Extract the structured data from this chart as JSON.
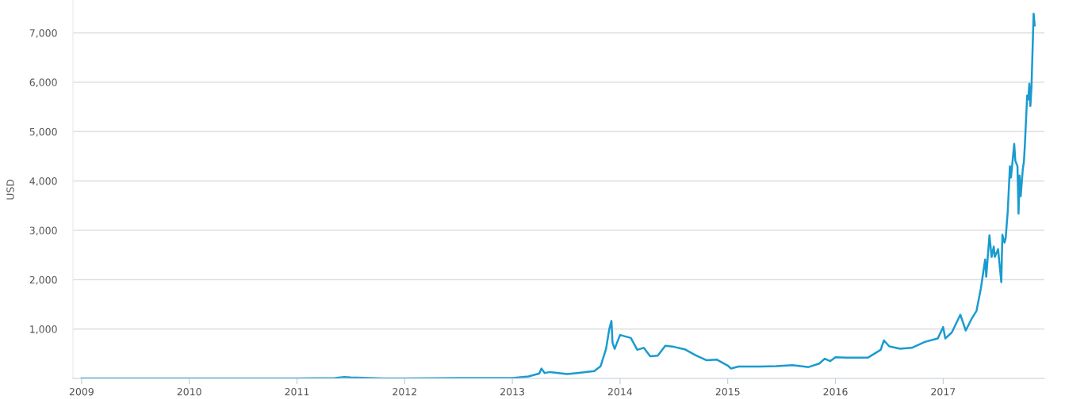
{
  "chart_data": {
    "type": "line",
    "ylabel": "USD",
    "xlim": [
      2008.92,
      2017.94
    ],
    "xticks": [
      2009,
      2010,
      2011,
      2012,
      2013,
      2014,
      2015,
      2016,
      2017
    ],
    "ylim": [
      0,
      7650
    ],
    "yticks": [
      {
        "value": 1000,
        "label": "1,000"
      },
      {
        "value": 2000,
        "label": "2,000"
      },
      {
        "value": 3000,
        "label": "3,000"
      },
      {
        "value": 4000,
        "label": "4,000"
      },
      {
        "value": 5000,
        "label": "5,000"
      },
      {
        "value": 6000,
        "label": "6,000"
      },
      {
        "value": 7000,
        "label": "7,000"
      }
    ],
    "grid": "y",
    "marker": "none",
    "line_style": "solid",
    "series": [
      {
        "color": "#1a9bd0",
        "x": [
          2009.0,
          2010.0,
          2010.5,
          2011.0,
          2011.35,
          2011.44,
          2011.5,
          2011.8,
          2012.0,
          2012.5,
          2012.9,
          2013.0,
          2013.15,
          2013.25,
          2013.27,
          2013.3,
          2013.35,
          2013.51,
          2013.6,
          2013.76,
          2013.82,
          2013.87,
          2013.9,
          2013.92,
          2013.93,
          2013.95,
          2014.0,
          2014.1,
          2014.16,
          2014.22,
          2014.28,
          2014.35,
          2014.42,
          2014.5,
          2014.6,
          2014.7,
          2014.8,
          2014.9,
          2015.0,
          2015.03,
          2015.1,
          2015.3,
          2015.45,
          2015.6,
          2015.75,
          2015.85,
          2015.9,
          2015.95,
          2016.0,
          2016.1,
          2016.3,
          2016.42,
          2016.45,
          2016.5,
          2016.6,
          2016.71,
          2016.83,
          2016.95,
          2017.0,
          2017.02,
          2017.08,
          2017.16,
          2017.21,
          2017.27,
          2017.31,
          2017.35,
          2017.39,
          2017.4,
          2017.43,
          2017.45,
          2017.47,
          2017.48,
          2017.51,
          2017.54,
          2017.55,
          2017.57,
          2017.58,
          2017.6,
          2017.62,
          2017.63,
          2017.66,
          2017.67,
          2017.69,
          2017.7,
          2017.71,
          2017.72,
          2017.74,
          2017.75,
          2017.76,
          2017.78,
          2017.79,
          2017.8,
          2017.81,
          2017.82,
          2017.84,
          2017.85
        ],
        "values": [
          0,
          0,
          0,
          0,
          10,
          30,
          20,
          0,
          0,
          10,
          10,
          10,
          40,
          100,
          200,
          110,
          130,
          90,
          110,
          150,
          250,
          600,
          1000,
          1165,
          725,
          600,
          880,
          820,
          580,
          620,
          450,
          460,
          660,
          640,
          590,
          470,
          370,
          380,
          260,
          200,
          240,
          240,
          250,
          270,
          230,
          300,
          400,
          350,
          430,
          420,
          420,
          580,
          770,
          650,
          600,
          620,
          740,
          810,
          1040,
          810,
          930,
          1290,
          970,
          1230,
          1370,
          1820,
          2410,
          2060,
          2900,
          2460,
          2670,
          2460,
          2620,
          1950,
          2910,
          2750,
          2830,
          3390,
          4300,
          4070,
          4750,
          4410,
          4300,
          3340,
          4110,
          3690,
          4250,
          4390,
          4780,
          5730,
          5650,
          5970,
          5520,
          5890,
          7390,
          7150
        ]
      }
    ]
  }
}
